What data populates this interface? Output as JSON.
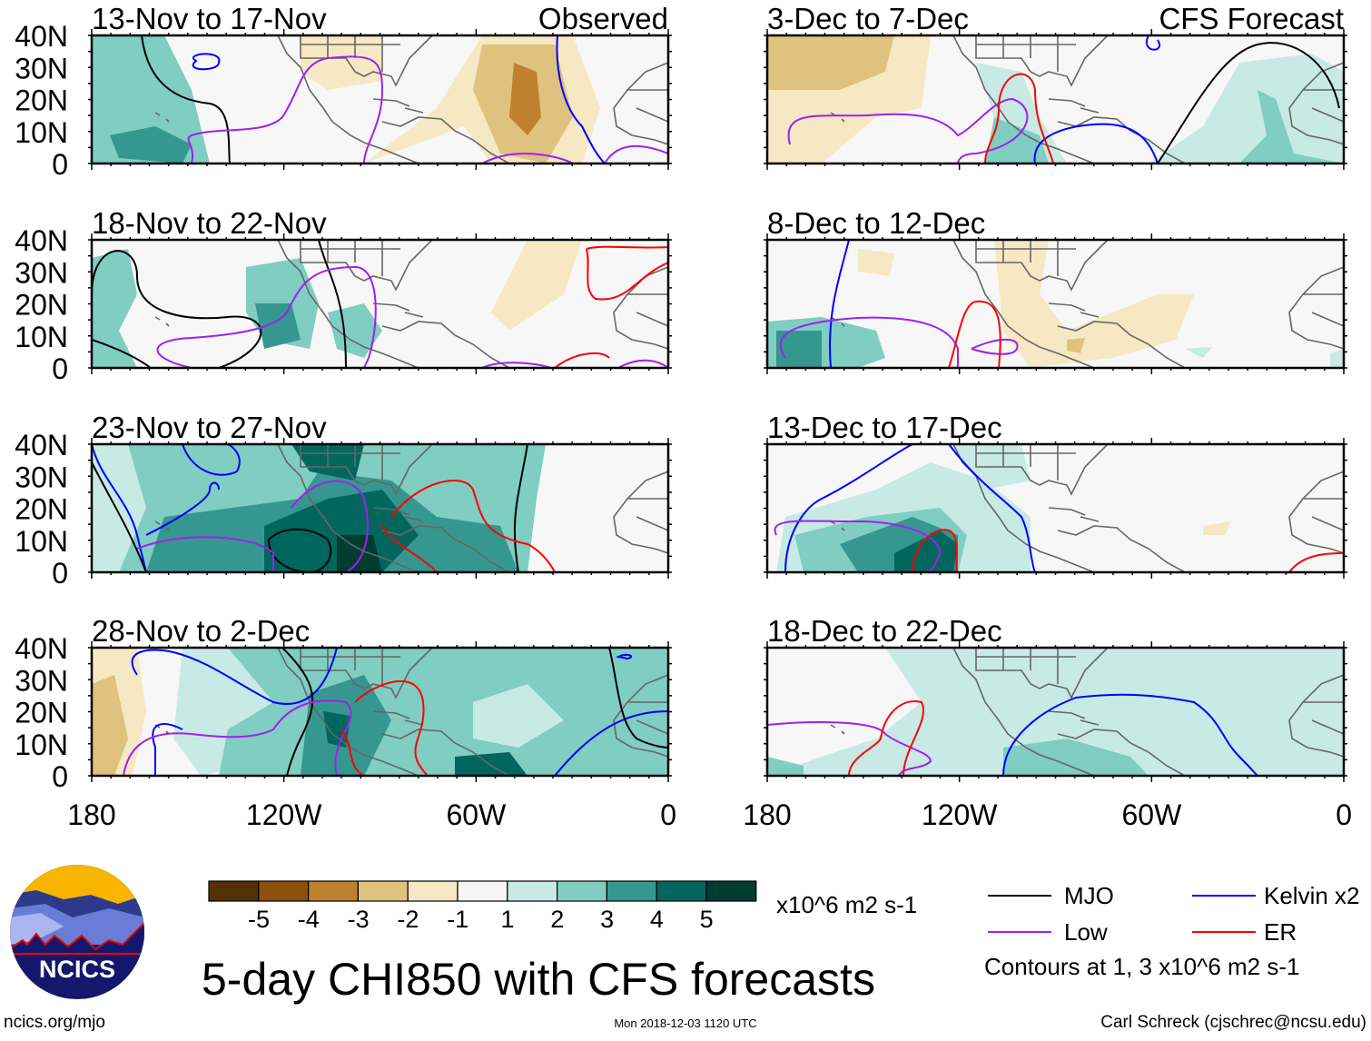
{
  "chart_data": {
    "type": "heatmap",
    "title": "5-day CHI850 with CFS forecasts",
    "units": "x10^6 m2 s-1",
    "xlim": [
      "180",
      "0"
    ],
    "ylim": [
      "0",
      "40N"
    ],
    "lat_ticks": [
      "40N",
      "30N",
      "20N",
      "10N",
      "0"
    ],
    "lon_ticks": [
      "180",
      "120W",
      "60W",
      "0"
    ],
    "panels": [
      {
        "title": "13-Nov to 17-Nov",
        "tag": "Observed"
      },
      {
        "title": "18-Nov to 22-Nov"
      },
      {
        "title": "23-Nov to 27-Nov"
      },
      {
        "title": "28-Nov to 2-Dec"
      },
      {
        "title": "3-Dec to 7-Dec",
        "tag": "CFS Forecast"
      },
      {
        "title": "8-Dec to 12-Dec"
      },
      {
        "title": "13-Dec to 17-Dec"
      },
      {
        "title": "18-Dec to 22-Dec"
      }
    ],
    "colorbar": {
      "ticks": [
        "-5",
        "-4",
        "-3",
        "-2",
        "-1",
        "1",
        "2",
        "3",
        "4",
        "5"
      ],
      "colors": [
        "#543005",
        "#8c510a",
        "#bf812d",
        "#dfc27d",
        "#f6e8c3",
        "#f5f5f5",
        "#c7eae5",
        "#80cdc1",
        "#35978f",
        "#01665e",
        "#003c30"
      ]
    },
    "legend": [
      {
        "label": "MJO",
        "color": "#000000"
      },
      {
        "label": "Kelvin x2",
        "color": "#0000ff"
      },
      {
        "label": "Low",
        "color": "#a020f0"
      },
      {
        "label": "ER",
        "color": "#ff0000"
      }
    ],
    "contour_note": "Contours at 1, 3 x10^6 m2 s-1"
  },
  "logo": {
    "text": "NCICS"
  },
  "footer": {
    "url": "ncics.org/mjo",
    "timestamp": "Mon 2018-12-03 1120 UTC",
    "credit": "Carl Schreck (cjschrec@ncsu.edu)"
  }
}
